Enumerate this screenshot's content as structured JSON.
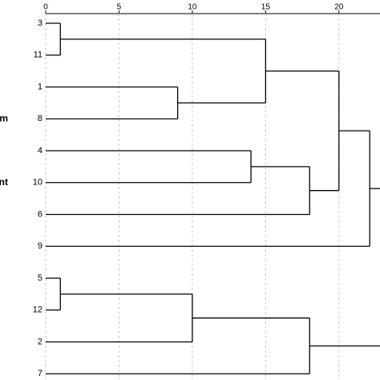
{
  "chart_data": {
    "type": "dendrogram",
    "orientation": "horizontal",
    "leaves": [
      "3",
      "11",
      "1",
      "8",
      "4",
      "10",
      "6",
      "9",
      "5",
      "12",
      "2",
      "7"
    ],
    "merges": [
      {
        "children": [
          0,
          1
        ],
        "distance": 1
      },
      {
        "children": [
          2,
          3
        ],
        "distance": 9
      },
      {
        "children": [
          12,
          13
        ],
        "distance": 15
      },
      {
        "children": [
          4,
          5
        ],
        "distance": 14
      },
      {
        "children": [
          15,
          6
        ],
        "distance": 18
      },
      {
        "children": [
          14,
          16
        ],
        "distance": 20
      },
      {
        "children": [
          17,
          7
        ],
        "distance": 22.1
      },
      {
        "children": [
          8,
          9
        ],
        "distance": 1
      },
      {
        "children": [
          19,
          10
        ],
        "distance": 10
      },
      {
        "children": [
          20,
          11
        ],
        "distance": 18
      }
    ],
    "side_labels": [
      {
        "text": "m",
        "leaf": 3
      },
      {
        "text": "ent",
        "leaf": 5
      }
    ],
    "xlim": [
      0,
      22.8
    ],
    "xticks": [
      0,
      5,
      10,
      15,
      20
    ],
    "grid": true,
    "color": "#000000",
    "grid_color": "#c8c8c8"
  }
}
